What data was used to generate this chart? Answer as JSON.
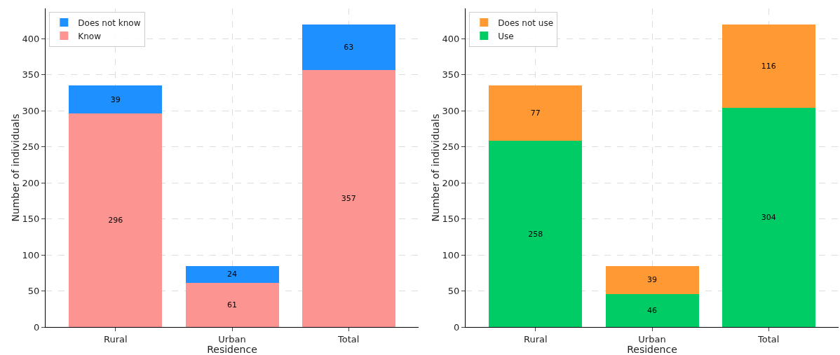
{
  "chart_data": [
    {
      "type": "bar",
      "stacked": true,
      "xlabel": "Residence",
      "ylabel": "Number of individuals",
      "categories": [
        "Rural",
        "Urban",
        "Total"
      ],
      "series": [
        {
          "name": "Know",
          "color": "#fc9592",
          "values": [
            296,
            61,
            357
          ]
        },
        {
          "name": "Does not know",
          "color": "#1e90ff",
          "values": [
            39,
            24,
            63
          ]
        }
      ],
      "ylim": [
        0,
        442
      ],
      "yticks": [
        0,
        50,
        100,
        150,
        200,
        250,
        300,
        350,
        400
      ],
      "grid": true,
      "legend": "top left",
      "data_labels": true
    },
    {
      "type": "bar",
      "stacked": true,
      "xlabel": "Residence",
      "ylabel": "Number of individuals",
      "categories": [
        "Rural",
        "Urban",
        "Total"
      ],
      "series": [
        {
          "name": "Use",
          "color": "#00cc66",
          "values": [
            258,
            46,
            304
          ]
        },
        {
          "name": "Does not use",
          "color": "#ff9933",
          "values": [
            77,
            39,
            116
          ]
        }
      ],
      "ylim": [
        0,
        442
      ],
      "yticks": [
        0,
        50,
        100,
        150,
        200,
        250,
        300,
        350,
        400
      ],
      "grid": true,
      "legend": "top left",
      "data_labels": true
    }
  ]
}
